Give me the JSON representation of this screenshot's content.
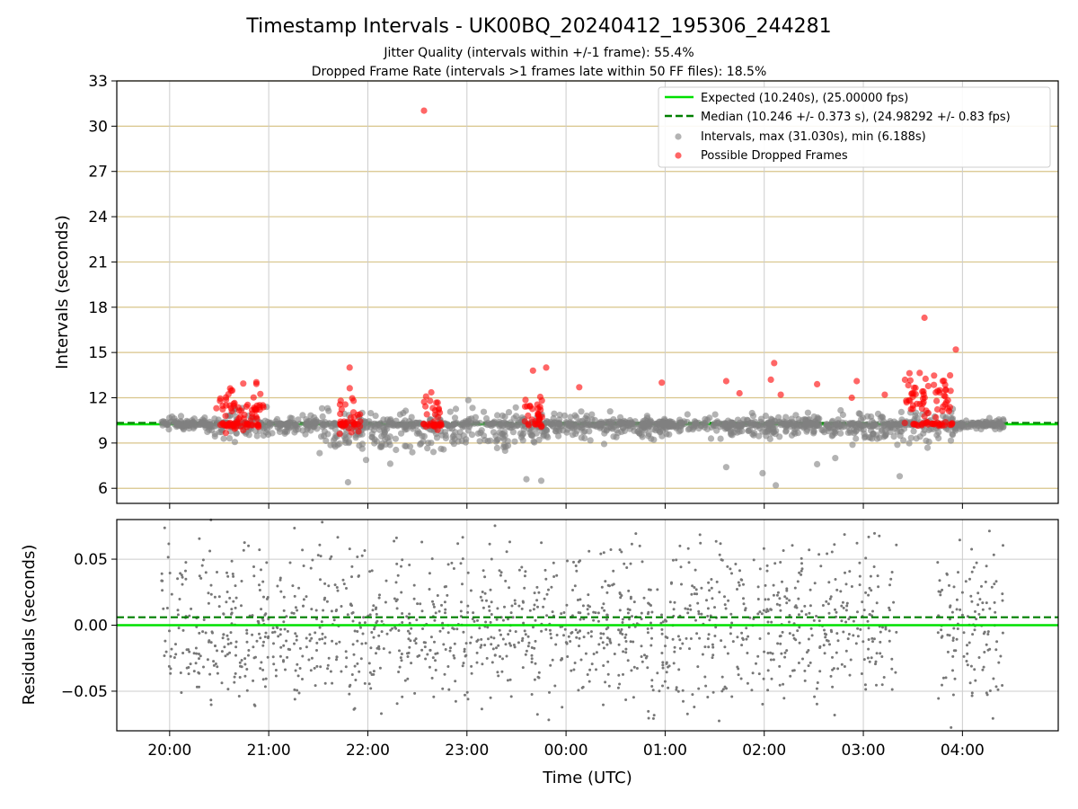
{
  "chart_data": [
    {
      "type": "scatter",
      "title": "Timestamp Intervals - UK00BQ_20240412_195306_244281",
      "subtitle_lines": [
        "Jitter Quality (intervals within +/-1 frame): 55.4%",
        "Dropped Frame Rate (intervals >1 frames late within 50 FF files): 18.5%"
      ],
      "ylabel": "Intervals (seconds)",
      "ylim": [
        5,
        33
      ],
      "yticks": [
        6,
        9,
        12,
        15,
        18,
        21,
        24,
        27,
        30,
        33
      ],
      "xlim": [
        "19:28",
        "04:58"
      ],
      "grid": "horizontal gold, vertical gray",
      "legend_position": "upper-right",
      "expected": {
        "label": "Expected (10.240s), (25.00000 fps)",
        "value": 10.24,
        "color": "#00e000"
      },
      "median": {
        "label": "Median (10.246 +/- 0.373 s), (24.98292 +/- 0.83 fps)",
        "value": 10.246,
        "color": "#007f00"
      },
      "series": [
        {
          "name": "Intervals, max (31.030s), min (6.188s)",
          "color": "#808080",
          "clusters": [
            {
              "x_start": "19:55",
              "x_end": "20:25",
              "center": 10.24,
              "spread": 0.4
            },
            {
              "x_start": "20:25",
              "x_end": "21:05",
              "center": 10.24,
              "spread": 0.8
            },
            {
              "x_start": "21:05",
              "x_end": "21:30",
              "center": 10.24,
              "spread": 0.5
            },
            {
              "x_start": "21:30",
              "x_end": "23:30",
              "center": 9.8,
              "spread": 1.2
            },
            {
              "x_start": "23:30",
              "x_end": "00:30",
              "center": 10.1,
              "spread": 0.8
            },
            {
              "x_start": "00:30",
              "x_end": "02:45",
              "center": 10.1,
              "spread": 0.6
            },
            {
              "x_start": "02:45",
              "x_end": "03:20",
              "center": 10.0,
              "spread": 0.8
            },
            {
              "x_start": "03:20",
              "x_end": "03:55",
              "center": 10.0,
              "spread": 0.9
            },
            {
              "x_start": "03:55",
              "x_end": "04:25",
              "center": 10.24,
              "spread": 0.3
            }
          ],
          "outliers": [
            {
              "x": "21:48",
              "y": 6.4
            },
            {
              "x": "23:36",
              "y": 6.6
            },
            {
              "x": "23:45",
              "y": 6.5
            },
            {
              "x": "01:59",
              "y": 7.0
            },
            {
              "x": "02:07",
              "y": 6.2
            },
            {
              "x": "02:32",
              "y": 7.6
            },
            {
              "x": "03:22",
              "y": 6.8
            },
            {
              "x": "02:43",
              "y": 8.0
            },
            {
              "x": "01:37",
              "y": 7.4
            }
          ]
        },
        {
          "name": "Possible Dropped Frames",
          "color": "#ff0000",
          "clusters": [
            {
              "x_start": "20:28",
              "x_end": "20:58",
              "center": 11.2,
              "spread": 1.2
            },
            {
              "x_start": "21:43",
              "x_end": "21:56",
              "center": 11.0,
              "spread": 1.2
            },
            {
              "x_start": "22:33",
              "x_end": "22:45",
              "center": 11.2,
              "spread": 1.0
            },
            {
              "x_start": "23:35",
              "x_end": "23:46",
              "center": 11.0,
              "spread": 0.9
            },
            {
              "x_start": "03:25",
              "x_end": "03:55",
              "center": 12.0,
              "spread": 1.4
            }
          ],
          "outliers": [
            {
              "x": "22:34",
              "y": 31.03
            },
            {
              "x": "21:49",
              "y": 14.0
            },
            {
              "x": "03:37",
              "y": 17.3
            },
            {
              "x": "03:56",
              "y": 15.2
            },
            {
              "x": "23:40",
              "y": 13.8
            },
            {
              "x": "23:48",
              "y": 14.0
            },
            {
              "x": "02:06",
              "y": 14.3
            },
            {
              "x": "01:37",
              "y": 13.1
            },
            {
              "x": "00:58",
              "y": 13.0
            },
            {
              "x": "02:32",
              "y": 12.9
            },
            {
              "x": "02:53",
              "y": 12.0
            },
            {
              "x": "03:13",
              "y": 12.2
            },
            {
              "x": "00:08",
              "y": 12.7
            },
            {
              "x": "02:10",
              "y": 12.2
            },
            {
              "x": "02:56",
              "y": 13.1
            },
            {
              "x": "01:45",
              "y": 12.3
            },
            {
              "x": "02:04",
              "y": 13.2
            }
          ]
        }
      ]
    },
    {
      "type": "scatter",
      "xlabel": "Time (UTC)",
      "ylabel": "Residuals (seconds)",
      "ylim": [
        -0.08,
        0.08
      ],
      "yticks": [
        -0.05,
        0.0,
        0.05
      ],
      "ytick_labels": [
        "−0.05",
        "0.00",
        "0.05"
      ],
      "xtick_labels": [
        "20:00",
        "21:00",
        "22:00",
        "23:00",
        "00:00",
        "01:00",
        "02:00",
        "03:00",
        "04:00"
      ],
      "xlim": [
        "19:28",
        "04:58"
      ],
      "grid": "both gray",
      "expected_residual": {
        "value": 0.0,
        "color": "#00e000"
      },
      "median_residual": {
        "value": 0.006,
        "color": "#007f00"
      },
      "series": [
        {
          "name": "residuals",
          "color": "#777777",
          "x_ranges": [
            [
              "19:55",
              "23:35"
            ],
            [
              "23:35",
              "03:20"
            ],
            [
              "03:45",
              "04:25"
            ]
          ],
          "y_range": [
            -0.08,
            0.08
          ],
          "approx_count": 1500
        }
      ]
    }
  ]
}
